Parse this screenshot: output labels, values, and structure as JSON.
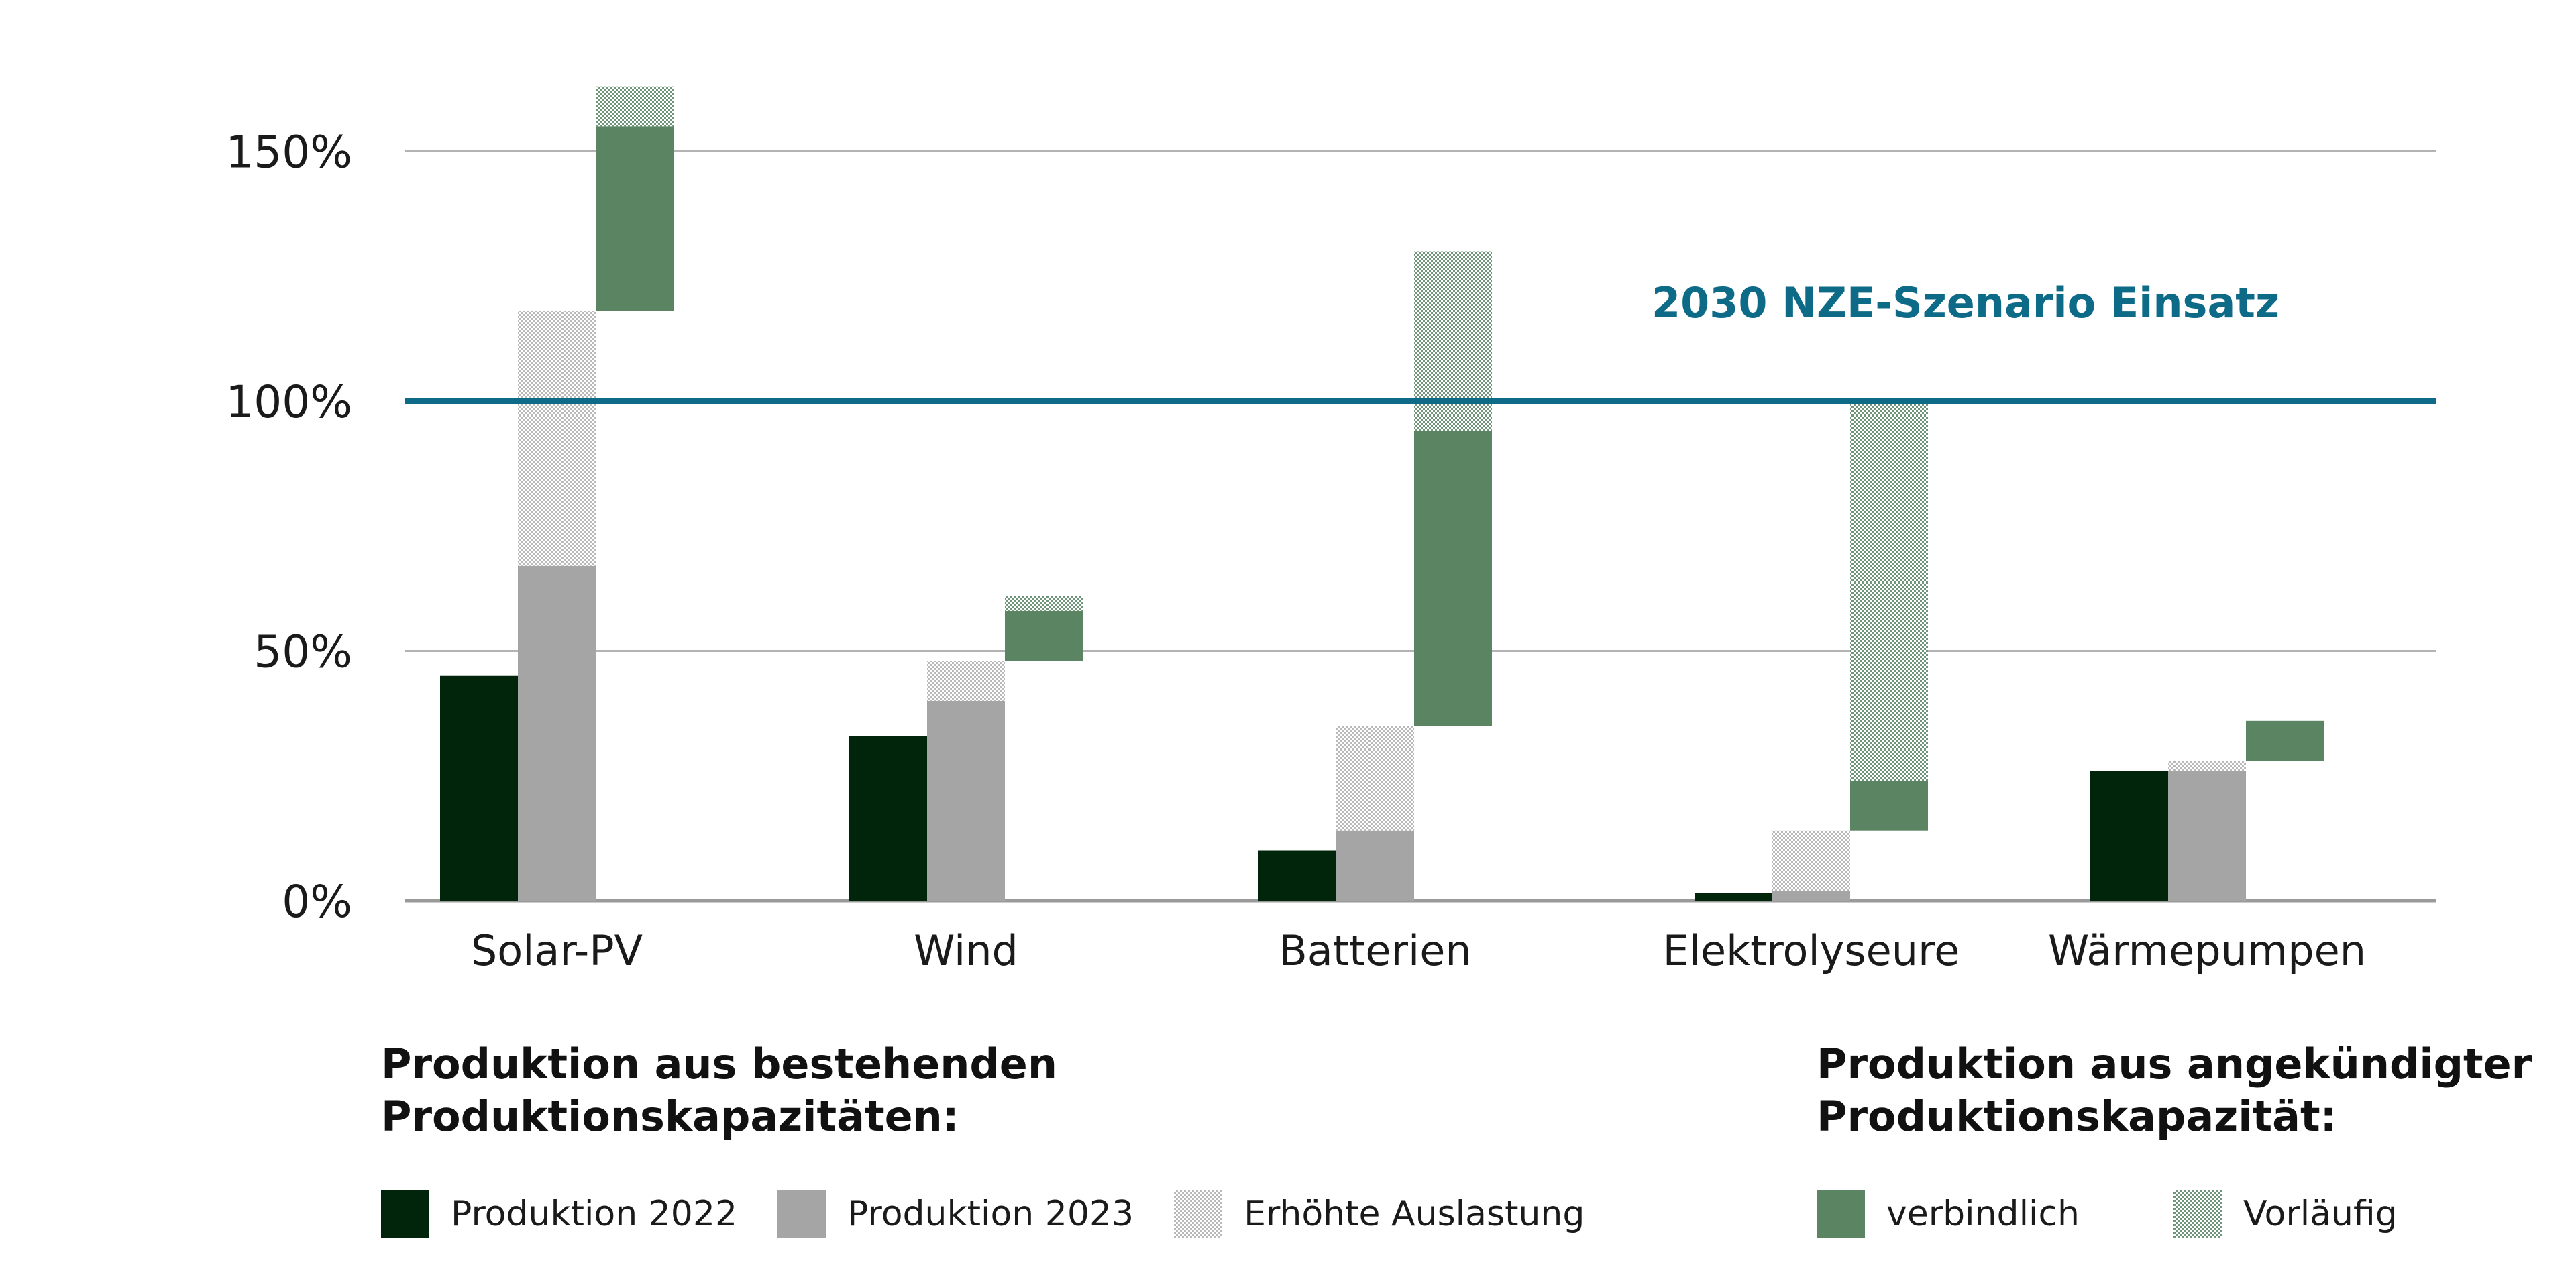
{
  "chart_data": {
    "type": "bar",
    "subtype": "floating-stacked-waterfall",
    "title": "",
    "xlabel": "",
    "ylabel": "",
    "ylim": [
      0,
      165
    ],
    "y_ticks": [
      0,
      50,
      100,
      150
    ],
    "y_tick_labels": [
      "0%",
      "50%",
      "100%",
      "150%"
    ],
    "grid": true,
    "categories": [
      "Solar-PV",
      "Wind",
      "Batterien",
      "Elektrolyseure",
      "Wärmepumpen"
    ],
    "series": [
      {
        "name": "Produktion 2022",
        "group": "existing",
        "values": [
          45,
          33,
          10,
          1.5,
          26
        ]
      },
      {
        "name": "Produktion 2023",
        "group": "existing",
        "values": [
          67,
          40,
          14,
          2,
          26
        ]
      },
      {
        "name": "Erhöhte Auslastung",
        "group": "existing",
        "ranges": [
          [
            67,
            118
          ],
          [
            40,
            48
          ],
          [
            14,
            35
          ],
          [
            2,
            14
          ],
          [
            26,
            28
          ]
        ]
      },
      {
        "name": "verbindlich",
        "group": "announced",
        "ranges": [
          [
            118,
            155
          ],
          [
            48,
            58
          ],
          [
            35,
            94
          ],
          [
            14,
            24
          ],
          [
            28,
            36
          ]
        ]
      },
      {
        "name": "Vorläufig",
        "group": "announced",
        "ranges": [
          [
            155,
            163
          ],
          [
            58,
            61
          ],
          [
            94,
            130
          ],
          [
            24,
            100
          ],
          null
        ]
      }
    ],
    "reference_line": {
      "value": 100,
      "label": "2030 NZE-Szenario Einsatz"
    },
    "legend": {
      "placement": "bottom",
      "groups": [
        {
          "title": "Produktion aus bestehenden\nProduktionskapazitäten:",
          "items": [
            "Produktion 2022",
            "Produktion 2023",
            "Erhöhte Auslastung"
          ]
        },
        {
          "title": "Produktion aus angekündigter\nProduktionskapazität:",
          "items": [
            "verbindlich",
            "Vorläufig"
          ]
        }
      ]
    }
  },
  "colors": {
    "produktion_2022": "#00250a",
    "produktion_2023": "#a5a5a5",
    "erhoehte_auslastung": "#b9b9b9",
    "verbindlich": "#5b8462",
    "vorlaeufig": "#6f957a",
    "reference_line": "#0d6b87",
    "grid": "#b3b3b3"
  }
}
